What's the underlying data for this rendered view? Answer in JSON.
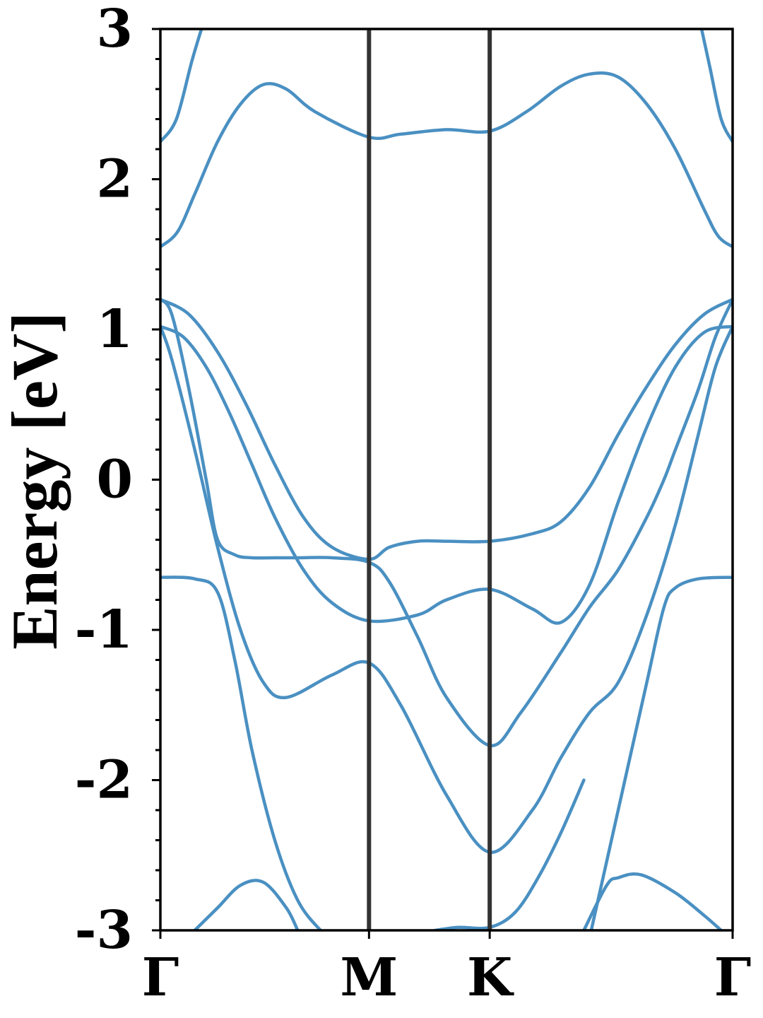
{
  "chart_data": {
    "type": "line",
    "title": "",
    "xlabel": "",
    "ylabel": "Energy [eV]",
    "ylim": [
      -3,
      3
    ],
    "yticks": [
      3,
      2,
      1,
      0,
      -1,
      -2,
      -3
    ],
    "ytick_labels": [
      "3",
      "2",
      "1",
      "0",
      "-1",
      "-2",
      "-3"
    ],
    "ytick_minor_step": 0.2,
    "xlim": [
      0,
      1
    ],
    "xticks": [
      {
        "label": "Γ",
        "x": 0.0
      },
      {
        "label": "M",
        "x": 0.3646
      },
      {
        "label": "K",
        "x": 0.5755
      },
      {
        "label": "Γ",
        "x": 1.0
      }
    ],
    "high_symmetry_lines": [
      0.3646,
      0.5755
    ],
    "grid": false,
    "legend": "none",
    "colors": {
      "band": "#4a90c2",
      "hsym": "#333333",
      "axis": "#000000"
    },
    "series": [
      {
        "x": [
          0.0,
          0.028,
          0.056,
          0.08
        ],
        "values": [
          2.25,
          2.4,
          2.8,
          3.1
        ]
      },
      {
        "x": [
          0.0,
          0.03,
          0.06,
          0.1,
          0.14,
          0.18,
          0.22,
          0.27,
          0.3646,
          0.42,
          0.5,
          0.5755,
          0.64,
          0.7,
          0.75,
          0.8,
          0.85,
          0.9,
          0.95,
          0.975,
          1.0
        ],
        "values": [
          1.55,
          1.65,
          1.9,
          2.25,
          2.5,
          2.63,
          2.6,
          2.45,
          2.28,
          2.3,
          2.33,
          2.32,
          2.45,
          2.62,
          2.7,
          2.68,
          2.5,
          2.2,
          1.8,
          1.62,
          1.55
        ]
      },
      {
        "x": [
          0.94,
          0.96,
          0.98,
          1.0
        ],
        "values": [
          3.1,
          2.75,
          2.4,
          2.25
        ]
      },
      {
        "x": [
          0.0,
          0.05,
          0.1,
          0.15,
          0.2,
          0.25,
          0.3,
          0.3646,
          0.4,
          0.45,
          0.5,
          0.5755,
          0.65,
          0.7,
          0.75,
          0.8,
          0.85,
          0.9,
          0.95,
          1.0
        ],
        "values": [
          1.2,
          1.1,
          0.85,
          0.5,
          0.1,
          -0.25,
          -0.45,
          -0.53,
          -0.45,
          -0.41,
          -0.41,
          -0.41,
          -0.36,
          -0.28,
          -0.05,
          0.3,
          0.62,
          0.9,
          1.1,
          1.2
        ]
      },
      {
        "x": [
          0.0,
          0.04,
          0.08,
          0.12,
          0.16,
          0.2,
          0.25,
          0.3,
          0.3646,
          0.45,
          0.5,
          0.5755,
          0.65,
          0.7,
          0.75,
          0.8,
          0.85,
          0.9,
          0.95,
          1.0
        ],
        "values": [
          1.02,
          0.95,
          0.75,
          0.45,
          0.1,
          -0.25,
          -0.6,
          -0.82,
          -0.94,
          -0.9,
          -0.8,
          -0.73,
          -0.86,
          -0.95,
          -0.7,
          -0.15,
          0.35,
          0.75,
          0.98,
          1.02
        ]
      },
      {
        "x": [
          0.0,
          0.02,
          0.05,
          0.08,
          0.1,
          0.13,
          0.16,
          0.2,
          0.24,
          0.3,
          0.3646,
          0.4,
          0.45,
          0.5,
          0.5755,
          0.63,
          0.7,
          0.75,
          0.8,
          0.85,
          0.88,
          0.9,
          0.94,
          0.97,
          1.0
        ],
        "values": [
          1.2,
          1.1,
          0.6,
          0.0,
          -0.4,
          -0.5,
          -0.52,
          -0.52,
          -0.52,
          -0.52,
          -0.55,
          -0.68,
          -1.05,
          -1.45,
          -1.77,
          -1.55,
          -1.15,
          -0.85,
          -0.6,
          -0.25,
          0.0,
          0.2,
          0.6,
          0.95,
          1.2
        ]
      },
      {
        "x": [
          0.0,
          0.02,
          0.06,
          0.1,
          0.14,
          0.18,
          0.22,
          0.3,
          0.3646,
          0.42,
          0.5,
          0.5755,
          0.65,
          0.7,
          0.75,
          0.8,
          0.85,
          0.9,
          0.94,
          0.97,
          1.0
        ],
        "values": [
          1.02,
          0.8,
          0.2,
          -0.45,
          -1.0,
          -1.35,
          -1.45,
          -1.3,
          -1.22,
          -1.5,
          -2.1,
          -2.48,
          -2.2,
          -1.85,
          -1.55,
          -1.35,
          -0.9,
          -0.3,
          0.3,
          0.75,
          1.02
        ]
      },
      {
        "x": [
          0.0,
          0.06,
          0.1,
          0.13,
          0.16,
          0.2,
          0.24,
          0.28,
          0.3
        ],
        "values": [
          -0.65,
          -0.66,
          -0.75,
          -1.2,
          -1.8,
          -2.4,
          -2.8,
          -3.0,
          -3.05
        ]
      },
      {
        "x": [
          0.75,
          0.8,
          0.85,
          0.88,
          0.9,
          0.94,
          1.0
        ],
        "values": [
          -3.05,
          -2.2,
          -1.35,
          -0.85,
          -0.72,
          -0.66,
          -0.65
        ]
      },
      {
        "x": [
          0.06,
          0.1,
          0.14,
          0.18,
          0.22,
          0.24
        ],
        "values": [
          -3.0,
          -2.85,
          -2.7,
          -2.68,
          -2.85,
          -3.0
        ]
      },
      {
        "x": [
          0.48,
          0.52,
          0.5755,
          0.62,
          0.66,
          0.7,
          0.74
        ],
        "values": [
          -3.0,
          -2.98,
          -2.98,
          -2.88,
          -2.65,
          -2.35,
          -2.0
        ]
      },
      {
        "x": [
          0.74,
          0.78,
          0.8,
          0.84,
          0.9,
          0.95,
          0.98
        ],
        "values": [
          -3.0,
          -2.7,
          -2.65,
          -2.63,
          -2.75,
          -2.9,
          -3.0
        ]
      }
    ]
  }
}
